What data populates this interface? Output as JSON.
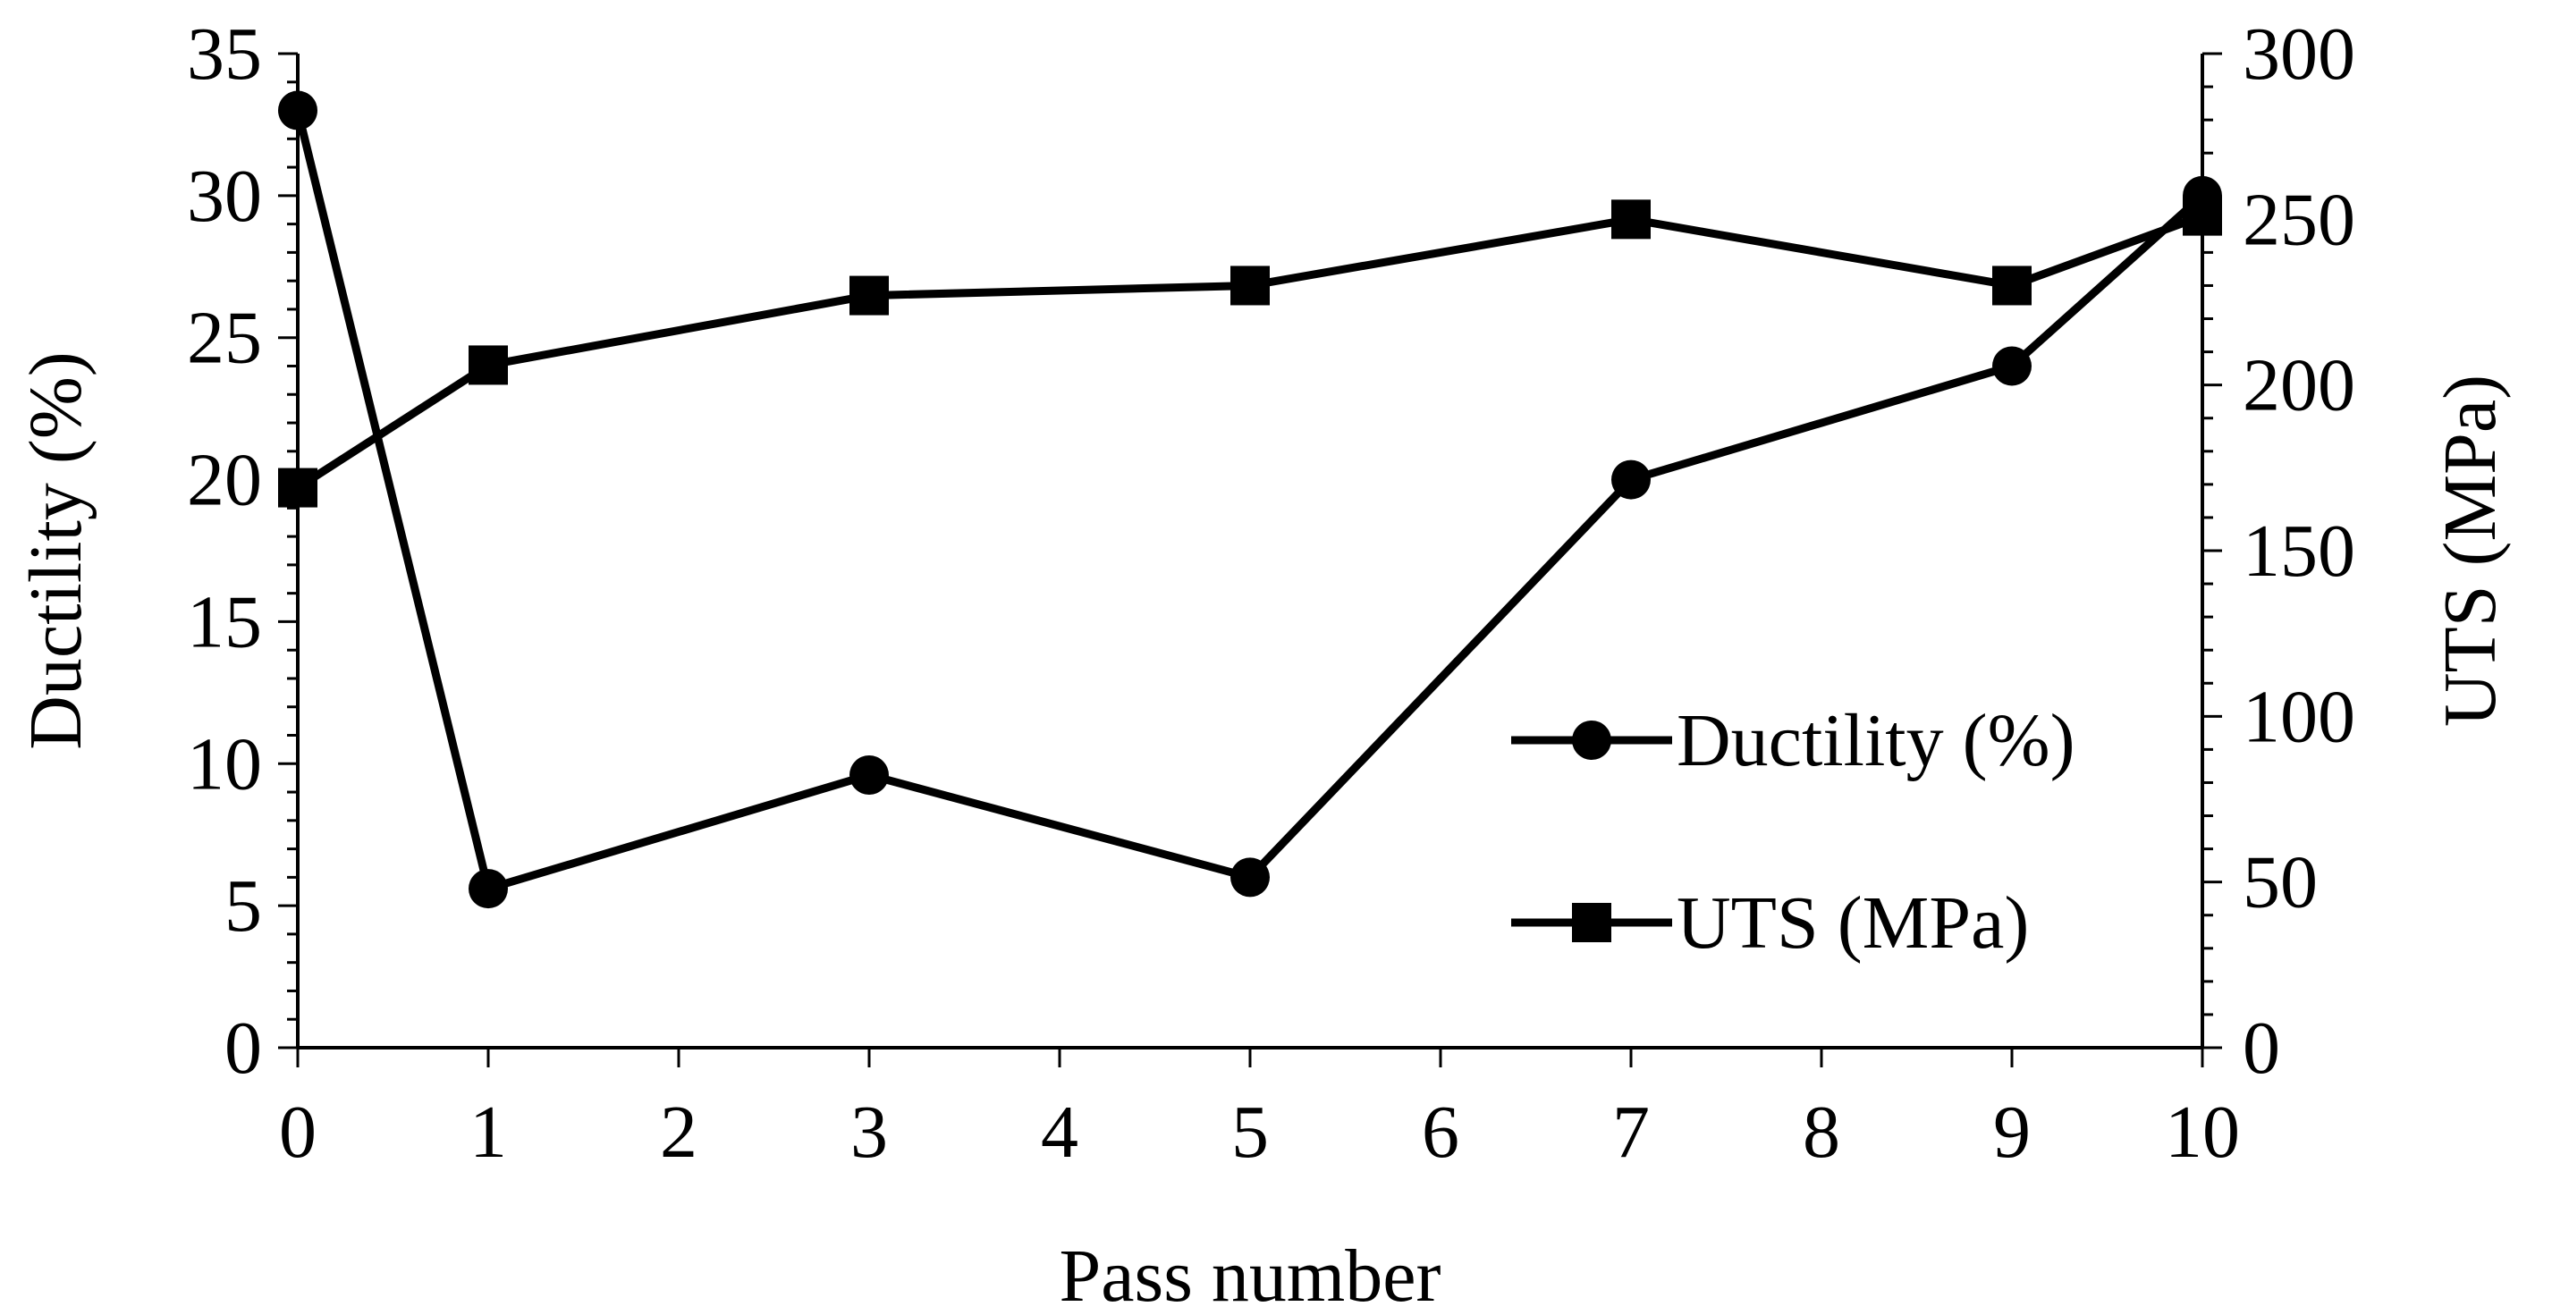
{
  "chart_data": {
    "type": "line",
    "title": "",
    "xlabel": "Pass number",
    "ylabel_left": "Ductility  (%)",
    "ylabel_right": "UTS (MPa)",
    "xlim": [
      0,
      10
    ],
    "ylim_left": [
      0,
      35
    ],
    "ylim_right": [
      0,
      300
    ],
    "x_ticks": [
      0,
      1,
      2,
      3,
      4,
      5,
      6,
      7,
      8,
      9,
      10
    ],
    "y_left_ticks": [
      0,
      5,
      10,
      15,
      20,
      25,
      30,
      35
    ],
    "y_right_ticks": [
      0,
      50,
      100,
      150,
      200,
      250,
      300
    ],
    "grid": false,
    "legend_position": "right-center",
    "series": [
      {
        "name": "Ductility (%)",
        "axis": "left",
        "marker": "circle",
        "color": "#000000",
        "x": [
          0,
          1,
          3,
          5,
          7,
          9,
          10
        ],
        "y": [
          33,
          5.6,
          9.6,
          6,
          20,
          24,
          30
        ]
      },
      {
        "name": "UTS (MPa)",
        "axis": "right",
        "marker": "square",
        "color": "#000000",
        "x": [
          0,
          1,
          3,
          5,
          7,
          9,
          10
        ],
        "y": [
          169,
          206,
          227,
          230,
          250,
          230,
          251
        ]
      }
    ]
  }
}
